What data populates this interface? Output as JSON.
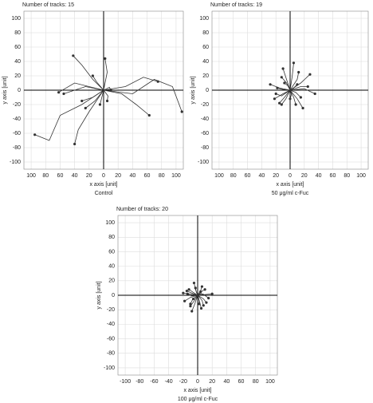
{
  "chart_data": [
    {
      "type": "line",
      "title": "Number of tracks: 15",
      "xlabel": "x axis [unit]",
      "ylabel": "y axis [unit]",
      "caption": "Control",
      "xlim": [
        -110,
        110
      ],
      "ylim": [
        -110,
        110
      ],
      "color": "#333333",
      "grid": true,
      "xticks": [
        {
          "value": -100,
          "label": "100"
        },
        {
          "value": -80,
          "label": "80"
        },
        {
          "value": -60,
          "label": "60"
        },
        {
          "value": -40,
          "label": "40"
        },
        {
          "value": -20,
          "label": "20"
        },
        0,
        20,
        40,
        60,
        80,
        100
      ],
      "yticks": [
        100,
        80,
        60,
        40,
        20,
        0,
        -20,
        -40,
        -60,
        -80,
        -100
      ],
      "tracks": [
        {
          "x": [
            0,
            -15,
            -30,
            -42
          ],
          "y": [
            0,
            15,
            35,
            48
          ]
        },
        {
          "x": [
            0,
            5,
            2
          ],
          "y": [
            0,
            25,
            44
          ]
        },
        {
          "x": [
            0,
            -30,
            -60,
            -75,
            -95
          ],
          "y": [
            0,
            -20,
            -35,
            -70,
            -62
          ]
        },
        {
          "x": [
            0,
            -25,
            -55
          ],
          "y": [
            0,
            5,
            -5
          ]
        },
        {
          "x": [
            0,
            -20,
            -35,
            -40
          ],
          "y": [
            0,
            -30,
            -55,
            -75
          ]
        },
        {
          "x": [
            0,
            30,
            55,
            75
          ],
          "y": [
            0,
            5,
            18,
            12
          ]
        },
        {
          "x": [
            0,
            40,
            70,
            95,
            108
          ],
          "y": [
            0,
            -5,
            15,
            5,
            -30
          ]
        },
        {
          "x": [
            0,
            25,
            45,
            63
          ],
          "y": [
            0,
            -5,
            -20,
            -35
          ]
        },
        {
          "x": [
            0,
            -15,
            -30
          ],
          "y": [
            0,
            -10,
            -15
          ]
        },
        {
          "x": [
            0,
            -10,
            -15
          ],
          "y": [
            0,
            12,
            20
          ]
        },
        {
          "x": [
            0,
            8,
            10
          ],
          "y": [
            0,
            4,
            0
          ]
        },
        {
          "x": [
            0,
            -3,
            -5
          ],
          "y": [
            0,
            -12,
            -20
          ]
        },
        {
          "x": [
            0,
            -12,
            -25
          ],
          "y": [
            0,
            -15,
            -25
          ]
        },
        {
          "x": [
            0,
            6,
            5
          ],
          "y": [
            0,
            -8,
            -15
          ]
        },
        {
          "x": [
            0,
            -40,
            -62
          ],
          "y": [
            0,
            10,
            -3
          ]
        }
      ]
    },
    {
      "type": "line",
      "title": "Number of tracks: 19",
      "xlabel": "x axis [unit]",
      "ylabel": "y axis [unit]",
      "caption": "50 μg/ml c-Fuc",
      "xlim": [
        -110,
        110
      ],
      "ylim": [
        -110,
        110
      ],
      "color": "#333333",
      "grid": true,
      "xticks": [
        {
          "value": -100,
          "label": "100"
        },
        {
          "value": -80,
          "label": "80"
        },
        {
          "value": -60,
          "label": "60"
        },
        {
          "value": -40,
          "label": "40"
        },
        {
          "value": -20,
          "label": "20"
        },
        0,
        20,
        40,
        60,
        80,
        100
      ],
      "yticks": [
        100,
        80,
        60,
        40,
        20,
        0,
        -20,
        -40,
        -60,
        -80,
        -100
      ],
      "tracks": [
        {
          "x": [
            0,
            3,
            5
          ],
          "y": [
            0,
            20,
            38
          ]
        },
        {
          "x": [
            0,
            -5,
            -10
          ],
          "y": [
            0,
            15,
            30
          ]
        },
        {
          "x": [
            0,
            15,
            28
          ],
          "y": [
            0,
            10,
            22
          ]
        },
        {
          "x": [
            0,
            20,
            35
          ],
          "y": [
            0,
            2,
            -5
          ]
        },
        {
          "x": [
            0,
            10,
            18
          ],
          "y": [
            0,
            -12,
            -25
          ]
        },
        {
          "x": [
            0,
            -10,
            -22
          ],
          "y": [
            0,
            -5,
            -12
          ]
        },
        {
          "x": [
            0,
            -15,
            -28
          ],
          "y": [
            0,
            3,
            8
          ]
        },
        {
          "x": [
            0,
            -8,
            -15
          ],
          "y": [
            0,
            -10,
            -18
          ]
        },
        {
          "x": [
            0,
            5,
            8
          ],
          "y": [
            0,
            -10,
            -20
          ]
        },
        {
          "x": [
            0,
            -5,
            -12
          ],
          "y": [
            0,
            10,
            18
          ]
        },
        {
          "x": [
            0,
            10,
            12
          ],
          "y": [
            0,
            15,
            25
          ]
        },
        {
          "x": [
            0,
            15,
            25
          ],
          "y": [
            0,
            5,
            5
          ]
        },
        {
          "x": [
            0,
            -10,
            -18
          ],
          "y": [
            0,
            1,
            3
          ]
        },
        {
          "x": [
            0,
            2,
            0
          ],
          "y": [
            0,
            -6,
            -12
          ]
        },
        {
          "x": [
            0,
            -12,
            -20
          ],
          "y": [
            0,
            -8,
            -5
          ]
        },
        {
          "x": [
            0,
            8,
            15
          ],
          "y": [
            0,
            -3,
            -10
          ]
        },
        {
          "x": [
            0,
            -3,
            -8
          ],
          "y": [
            0,
            6,
            10
          ]
        },
        {
          "x": [
            0,
            5,
            10
          ],
          "y": [
            0,
            3,
            8
          ]
        },
        {
          "x": [
            0,
            -6,
            -12
          ],
          "y": [
            0,
            -12,
            -20
          ]
        }
      ]
    },
    {
      "type": "line",
      "title": "Number of tracks: 20",
      "xlabel": "x axis [unit]",
      "ylabel": "y axis [unit]",
      "caption": "100 μg/ml c-Fuc",
      "xlim": [
        -110,
        110
      ],
      "ylim": [
        -110,
        110
      ],
      "color": "#333333",
      "grid": true,
      "xticks": [
        -100,
        -80,
        -60,
        -40,
        -20,
        0,
        20,
        40,
        60,
        80,
        100
      ],
      "yticks": [
        100,
        80,
        60,
        40,
        20,
        0,
        -20,
        -40,
        -60,
        -80,
        -100
      ],
      "tracks": [
        {
          "x": [
            0,
            -3,
            -5
          ],
          "y": [
            0,
            8,
            17
          ]
        },
        {
          "x": [
            0,
            5,
            10
          ],
          "y": [
            0,
            5,
            8
          ]
        },
        {
          "x": [
            0,
            -8,
            -15
          ],
          "y": [
            0,
            3,
            6
          ]
        },
        {
          "x": [
            0,
            10,
            20
          ],
          "y": [
            0,
            1,
            2
          ]
        },
        {
          "x": [
            0,
            -5,
            -10
          ],
          "y": [
            0,
            -8,
            -15
          ]
        },
        {
          "x": [
            0,
            3,
            5
          ],
          "y": [
            0,
            -10,
            -18
          ]
        },
        {
          "x": [
            0,
            -10,
            -18
          ],
          "y": [
            0,
            -3,
            -8
          ]
        },
        {
          "x": [
            0,
            8,
            12
          ],
          "y": [
            0,
            -5,
            -10
          ]
        },
        {
          "x": [
            0,
            -6,
            -12
          ],
          "y": [
            0,
            4,
            8
          ]
        },
        {
          "x": [
            0,
            4,
            6
          ],
          "y": [
            0,
            6,
            12
          ]
        },
        {
          "x": [
            0,
            -4,
            -8
          ],
          "y": [
            0,
            -12,
            -22
          ]
        },
        {
          "x": [
            0,
            6,
            8
          ],
          "y": [
            0,
            -7,
            -14
          ]
        },
        {
          "x": [
            0,
            -9,
            -14
          ],
          "y": [
            0,
            -1,
            2
          ]
        },
        {
          "x": [
            0,
            7,
            15
          ],
          "y": [
            0,
            2,
            -4
          ]
        },
        {
          "x": [
            0,
            -2,
            -3
          ],
          "y": [
            0,
            5,
            10
          ]
        },
        {
          "x": [
            0,
            -7,
            -10
          ],
          "y": [
            0,
            -6,
            -12
          ]
        },
        {
          "x": [
            0,
            2,
            2
          ],
          "y": [
            0,
            -8,
            -12
          ]
        },
        {
          "x": [
            0,
            -12,
            -20
          ],
          "y": [
            0,
            2,
            3
          ]
        },
        {
          "x": [
            0,
            5,
            4
          ],
          "y": [
            0,
            3,
            5
          ]
        },
        {
          "x": [
            0,
            -5,
            -6
          ],
          "y": [
            0,
            -4,
            -5
          ]
        }
      ]
    }
  ]
}
